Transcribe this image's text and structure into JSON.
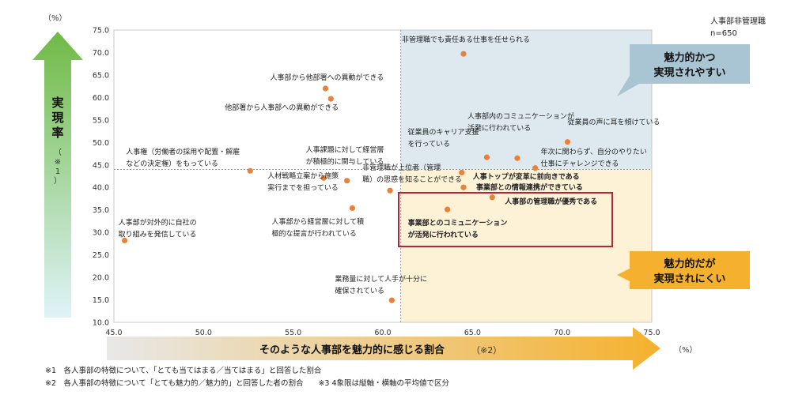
{
  "header": {
    "y_unit": "（%）",
    "x_unit": "（%）",
    "sample_label": "人事部非管理職",
    "sample_n": "n=650"
  },
  "y_axis_label": {
    "main": [
      "実",
      "現",
      "率"
    ],
    "note": [
      "（",
      "※",
      "1",
      "）"
    ]
  },
  "x_axis_label": {
    "main": "そのような人事部を魅力的に感じる割合",
    "note": "（※2）"
  },
  "callouts": {
    "top_right": [
      "魅力的かつ",
      "実現されやすい"
    ],
    "bottom_right": [
      "魅力的だが",
      "実現されにくい"
    ]
  },
  "footnotes": [
    "※1　各人事部の特徴について、「とても当てはまる／当てはまる」と回答した割合",
    "※2　各人事部の特徴について「とても魅力的／魅力的」と回答した者の割合　　※3 4象限は縦軸・横軸の平均値で区分"
  ],
  "colors": {
    "point": "#e8823a",
    "quadrant_top_right": "#dde9ef",
    "quadrant_bottom_right": "#fdf1d6",
    "highlight_box": "#b02a34",
    "callout_top": "#a9c4d3",
    "callout_bottom": "#f5b12d",
    "y_arrow_top": "#6fba45",
    "y_arrow_bottom": "#dff3f9",
    "x_arrow_right": "#f5b12d",
    "x_arrow_left": "#e8e8e8"
  },
  "chart_data": {
    "type": "scatter",
    "xlim": [
      45.0,
      75.0
    ],
    "ylim": [
      10.0,
      75.0
    ],
    "x_ticks": [
      "45.0",
      "50.0",
      "55.0",
      "60.0",
      "65.0",
      "70.0",
      "75.0"
    ],
    "y_ticks": [
      "10.0",
      "15.0",
      "20.0",
      "25.0",
      "30.0",
      "35.0",
      "40.0",
      "45.0",
      "50.0",
      "55.0",
      "60.0",
      "65.0",
      "70.0",
      "75.0"
    ],
    "x_mean": 61.0,
    "y_mean": 44.0,
    "points": [
      {
        "x": 64.5,
        "y": 69.7,
        "label": [
          "非管理職でも責任ある仕事を任せられる"
        ],
        "bold": false
      },
      {
        "x": 56.8,
        "y": 62.0,
        "label": [
          "人事部から他部署への異動ができる"
        ],
        "bold": false
      },
      {
        "x": 57.1,
        "y": 59.7,
        "label": [
          "他部署から人事部への異動ができる"
        ],
        "bold": false
      },
      {
        "x": 52.6,
        "y": 43.7,
        "label": [
          "人事権（労働者の採用や配置・解雇",
          "などの決定権）をもっている"
        ],
        "bold": false
      },
      {
        "x": 56.7,
        "y": 42.1,
        "label": [
          "人材戦略立案から施策",
          "実行までを担っている"
        ],
        "bold": false
      },
      {
        "x": 58.0,
        "y": 41.5,
        "label": [
          "人事課題に対して経営層",
          "が積極的に関与している"
        ],
        "bold": false
      },
      {
        "x": 58.3,
        "y": 35.4,
        "label": [
          "人事部から経営層に対して積",
          "極的な提言が行われている"
        ],
        "bold": false
      },
      {
        "x": 45.6,
        "y": 28.2,
        "label": [
          "人事部が対外的に自社の",
          "取り組みを発信している"
        ],
        "bold": false
      },
      {
        "x": 60.4,
        "y": 39.3,
        "label": [
          "非管理職が上位者（管理",
          "職）の思惑を知ることができる"
        ],
        "bold": false
      },
      {
        "x": 60.5,
        "y": 14.9,
        "label": [
          "業務量に対して人手が十分に",
          "確保されている"
        ],
        "bold": false
      },
      {
        "x": 65.8,
        "y": 46.7,
        "label": [
          "従業員のキャリア支援",
          "を行っている"
        ],
        "bold": false
      },
      {
        "x": 67.5,
        "y": 46.5,
        "label": [
          "人事部内のコミュニケーションが",
          "活発に行われている"
        ],
        "bold": false
      },
      {
        "x": 70.3,
        "y": 50.1,
        "label": [
          "従業員の声に耳を傾けている"
        ],
        "bold": false
      },
      {
        "x": 68.5,
        "y": 44.3,
        "label": [
          "年次に関わらず、自分のやりたい",
          "仕事にチャレンジできる"
        ],
        "bold": false
      },
      {
        "x": 64.4,
        "y": 43.3,
        "label": [
          "人事トップが変革に前向きである"
        ],
        "bold": true
      },
      {
        "x": 64.5,
        "y": 40.0,
        "label": [
          "事業部との情報連携ができている"
        ],
        "bold": true
      },
      {
        "x": 66.1,
        "y": 37.8,
        "label": [
          "人事部の管理職が優秀である"
        ],
        "bold": true
      },
      {
        "x": 63.6,
        "y": 35.1,
        "label": [
          "事業部とのコミュニケーション",
          "が活発に行われている"
        ],
        "bold": true
      }
    ]
  }
}
